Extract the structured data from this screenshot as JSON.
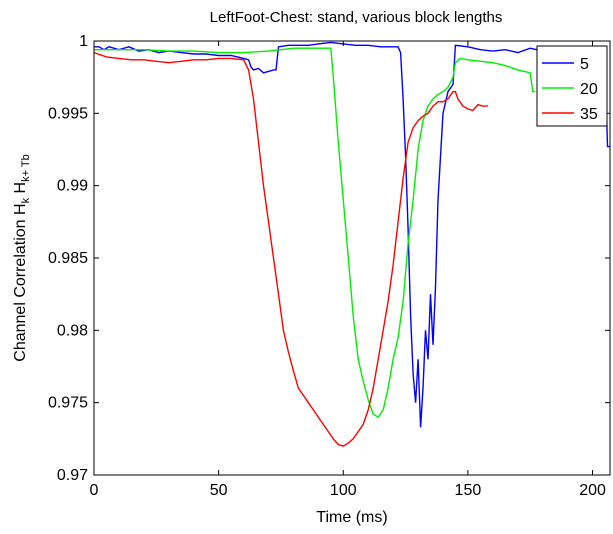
{
  "chart_data": {
    "type": "line",
    "title": "LeftFoot-Chest: stand, various block lengths",
    "xlabel": "Time (ms)",
    "ylabel": {
      "main": "Channel Correlation H",
      "sub1": "k",
      "mid": " H",
      "sub2": "k+ Tb"
    },
    "xlim": [
      0,
      207
    ],
    "ylim": [
      0.97,
      1.0
    ],
    "xticks": [
      0,
      50,
      100,
      150,
      200
    ],
    "xtick_labels": [
      "0",
      "50",
      "100",
      "150",
      "200"
    ],
    "yticks": [
      0.97,
      0.975,
      0.98,
      0.985,
      0.99,
      0.995,
      1.0
    ],
    "ytick_labels": [
      "0.97",
      "0.975",
      "0.98",
      "0.985",
      "0.99",
      "0.995",
      "1"
    ],
    "grid": false,
    "legend_position": "top-right",
    "series": [
      {
        "name": "5",
        "color": "#0000ff",
        "points": [
          [
            0,
            0.9996
          ],
          [
            2,
            0.9996
          ],
          [
            4,
            0.9994
          ],
          [
            6,
            0.9996
          ],
          [
            10,
            0.9994
          ],
          [
            14,
            0.9996
          ],
          [
            18,
            0.9993
          ],
          [
            22,
            0.9994
          ],
          [
            26,
            0.9992
          ],
          [
            30,
            0.9993
          ],
          [
            35,
            0.9992
          ],
          [
            40,
            0.9991
          ],
          [
            45,
            0.9991
          ],
          [
            50,
            0.999
          ],
          [
            55,
            0.999
          ],
          [
            60,
            0.9988
          ],
          [
            62,
            0.9987
          ],
          [
            63,
            0.9982
          ],
          [
            64,
            0.998
          ],
          [
            66,
            0.9981
          ],
          [
            68,
            0.9978
          ],
          [
            70,
            0.9979
          ],
          [
            72,
            0.998
          ],
          [
            73,
            0.998
          ],
          [
            74,
            0.9996
          ],
          [
            78,
            0.9997
          ],
          [
            82,
            0.9997
          ],
          [
            86,
            0.9997
          ],
          [
            90,
            0.9998
          ],
          [
            95,
            0.9999
          ],
          [
            100,
            0.9998
          ],
          [
            105,
            0.9997
          ],
          [
            110,
            0.9997
          ],
          [
            115,
            0.9996
          ],
          [
            120,
            0.9996
          ],
          [
            122,
            0.9996
          ],
          [
            123,
            0.9992
          ],
          [
            124,
            0.996
          ],
          [
            125,
            0.992
          ],
          [
            126,
            0.987
          ],
          [
            127,
            0.981
          ],
          [
            128,
            0.977
          ],
          [
            129,
            0.975
          ],
          [
            130,
            0.978
          ],
          [
            131,
            0.9733
          ],
          [
            132,
            0.976
          ],
          [
            133,
            0.98
          ],
          [
            134,
            0.978
          ],
          [
            135,
            0.9825
          ],
          [
            136,
            0.979
          ],
          [
            137,
            0.983
          ],
          [
            138,
            0.989
          ],
          [
            139,
            0.992
          ],
          [
            140,
            0.995
          ],
          [
            142,
            0.9965
          ],
          [
            144,
            0.997
          ],
          [
            145,
            0.9997
          ],
          [
            150,
            0.9996
          ],
          [
            155,
            0.9994
          ],
          [
            160,
            0.9993
          ],
          [
            165,
            0.9994
          ],
          [
            170,
            0.9992
          ],
          [
            175,
            0.9995
          ],
          [
            180,
            0.9993
          ],
          [
            185,
            0.9992
          ],
          [
            190,
            0.9993
          ],
          [
            195,
            0.9994
          ],
          [
            200,
            0.9993
          ],
          [
            203,
            0.999
          ],
          [
            205,
            0.999
          ],
          [
            206,
            0.9927
          ],
          [
            207,
            0.9927
          ]
        ]
      },
      {
        "name": "20",
        "color": "#00ee00",
        "points": [
          [
            0,
            0.9994
          ],
          [
            10,
            0.9994
          ],
          [
            20,
            0.9994
          ],
          [
            30,
            0.9993
          ],
          [
            40,
            0.9993
          ],
          [
            50,
            0.9992
          ],
          [
            60,
            0.9992
          ],
          [
            70,
            0.9993
          ],
          [
            75,
            0.9994
          ],
          [
            80,
            0.9995
          ],
          [
            85,
            0.9995
          ],
          [
            90,
            0.9995
          ],
          [
            95,
            0.9995
          ],
          [
            96,
            0.9975
          ],
          [
            98,
            0.993
          ],
          [
            100,
            0.989
          ],
          [
            102,
            0.985
          ],
          [
            104,
            0.981
          ],
          [
            106,
            0.978
          ],
          [
            108,
            0.9765
          ],
          [
            110,
            0.9752
          ],
          [
            112,
            0.9742
          ],
          [
            114,
            0.974
          ],
          [
            116,
            0.9745
          ],
          [
            118,
            0.976
          ],
          [
            120,
            0.978
          ],
          [
            122,
            0.9795
          ],
          [
            124,
            0.982
          ],
          [
            126,
            0.986
          ],
          [
            128,
            0.989
          ],
          [
            130,
            0.9925
          ],
          [
            132,
            0.9945
          ],
          [
            134,
            0.9955
          ],
          [
            136,
            0.996
          ],
          [
            138,
            0.9963
          ],
          [
            140,
            0.9965
          ],
          [
            142,
            0.9968
          ],
          [
            144,
            0.9975
          ],
          [
            145,
            0.9985
          ],
          [
            147,
            0.9988
          ],
          [
            150,
            0.9987
          ],
          [
            155,
            0.9986
          ],
          [
            160,
            0.9985
          ],
          [
            165,
            0.9983
          ],
          [
            170,
            0.998
          ],
          [
            175,
            0.9978
          ],
          [
            176,
            0.9965
          ],
          [
            177,
            0.9965
          ]
        ]
      },
      {
        "name": "35",
        "color": "#ff0000",
        "points": [
          [
            0,
            0.9992
          ],
          [
            5,
            0.9989
          ],
          [
            10,
            0.9988
          ],
          [
            15,
            0.9987
          ],
          [
            20,
            0.9987
          ],
          [
            25,
            0.9986
          ],
          [
            30,
            0.9985
          ],
          [
            35,
            0.9986
          ],
          [
            40,
            0.9987
          ],
          [
            45,
            0.9987
          ],
          [
            50,
            0.9988
          ],
          [
            55,
            0.9988
          ],
          [
            60,
            0.9987
          ],
          [
            62,
            0.998
          ],
          [
            64,
            0.996
          ],
          [
            66,
            0.993
          ],
          [
            68,
            0.99
          ],
          [
            70,
            0.9875
          ],
          [
            72,
            0.985
          ],
          [
            74,
            0.9825
          ],
          [
            76,
            0.98
          ],
          [
            78,
            0.9785
          ],
          [
            80,
            0.9772
          ],
          [
            82,
            0.976
          ],
          [
            84,
            0.9755
          ],
          [
            86,
            0.975
          ],
          [
            88,
            0.9745
          ],
          [
            90,
            0.974
          ],
          [
            92,
            0.9735
          ],
          [
            94,
            0.973
          ],
          [
            96,
            0.9725
          ],
          [
            98,
            0.9721
          ],
          [
            100,
            0.972
          ],
          [
            102,
            0.9722
          ],
          [
            104,
            0.9725
          ],
          [
            106,
            0.973
          ],
          [
            108,
            0.9735
          ],
          [
            110,
            0.9745
          ],
          [
            112,
            0.976
          ],
          [
            114,
            0.978
          ],
          [
            116,
            0.98
          ],
          [
            118,
            0.982
          ],
          [
            120,
            0.9845
          ],
          [
            122,
            0.9875
          ],
          [
            124,
            0.9905
          ],
          [
            126,
            0.993
          ],
          [
            128,
            0.994
          ],
          [
            130,
            0.9945
          ],
          [
            132,
            0.9948
          ],
          [
            134,
            0.995
          ],
          [
            136,
            0.9955
          ],
          [
            138,
            0.9958
          ],
          [
            140,
            0.9958
          ],
          [
            142,
            0.996
          ],
          [
            144,
            0.9965
          ],
          [
            145,
            0.9965
          ],
          [
            146,
            0.996
          ],
          [
            148,
            0.9955
          ],
          [
            150,
            0.9953
          ],
          [
            152,
            0.9952
          ],
          [
            154,
            0.9956
          ],
          [
            156,
            0.9955
          ],
          [
            158,
            0.9955
          ]
        ]
      }
    ]
  }
}
